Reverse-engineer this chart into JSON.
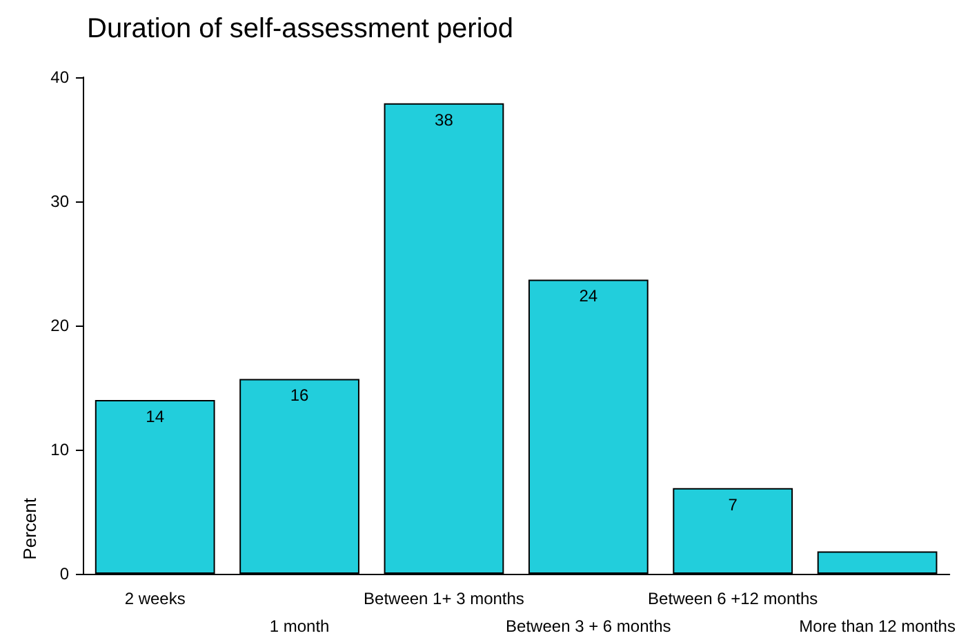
{
  "chart_data": {
    "type": "bar",
    "title": "Duration of self-assessment period",
    "ylabel": "Percent",
    "categories": [
      "2 weeks",
      "1 month",
      "Between 1+ 3 months",
      "Between 3 + 6 months",
      "Between 6 +12 months",
      "More than 12 months"
    ],
    "values": [
      14,
      15.7,
      37.9,
      23.7,
      6.9,
      1.8
    ],
    "value_labels": [
      "14",
      "16",
      "38",
      "24",
      "7",
      null
    ],
    "color": "#22cedc",
    "ylim": [
      0,
      40
    ],
    "yticks": [
      0,
      10,
      20,
      30,
      40
    ],
    "grid": false
  }
}
